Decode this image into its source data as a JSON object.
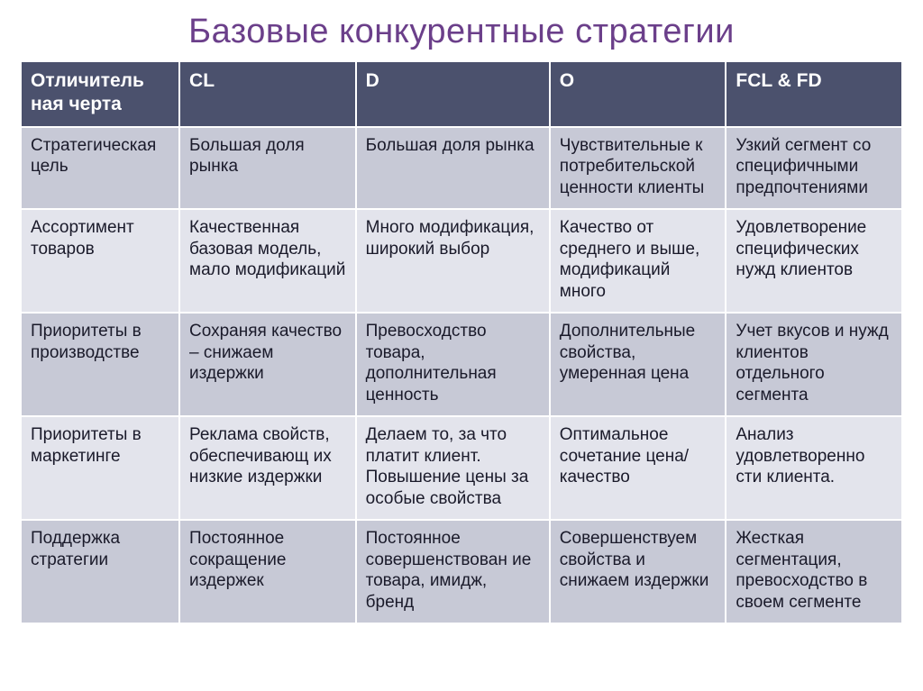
{
  "title": {
    "text": "Базовые конкурентные стратегии",
    "color": "#6b3f8a",
    "fontsize": 38
  },
  "table": {
    "header_bg": "#4b516d",
    "header_color": "#ffffff",
    "row_bg_alt1": "#c7c9d6",
    "row_bg_alt2": "#e3e4ec",
    "cell_fontsize": 19,
    "header_fontsize": 21,
    "col_widths": [
      "18%",
      "20%",
      "22%",
      "20%",
      "20%"
    ],
    "columns": [
      "Отличитель ная черта",
      "CL",
      "D",
      "O",
      "FCL & FD"
    ],
    "rows": [
      [
        "Стратегическая цель",
        "Большая доля рынка",
        "Большая доля рынка",
        "Чувствительные к потребительской ценности клиенты",
        "Узкий сегмент со специфичными предпочтениями"
      ],
      [
        "Ассортимент товаров",
        "Качественная базовая модель, мало модификаций",
        "Много модификация, широкий выбор",
        "Качество от среднего и выше, модификаций много",
        "Удовлетворение специфических нужд клиентов"
      ],
      [
        "Приоритеты в производстве",
        "Сохраняя качество – снижаем издержки",
        "Превосходство товара, дополнительная ценность",
        "Дополнительные свойства, умеренная цена",
        "Учет вкусов и нужд клиентов отдельного сегмента"
      ],
      [
        "Приоритеты в маркетинге",
        "Реклама свойств, обеспечивающ их низкие издержки",
        "Делаем то, за что платит клиент. Повышение цены за особые свойства",
        "Оптимальное сочетание цена/качество",
        "Анализ удовлетворенно сти клиента."
      ],
      [
        "Поддержка стратегии",
        "Постоянное сокращение издержек",
        "Постоянное совершенствован ие товара, имидж, бренд",
        "Совершенствуем свойства и снижаем издержки",
        "Жесткая сегментация, превосходство в своем сегменте"
      ]
    ]
  }
}
